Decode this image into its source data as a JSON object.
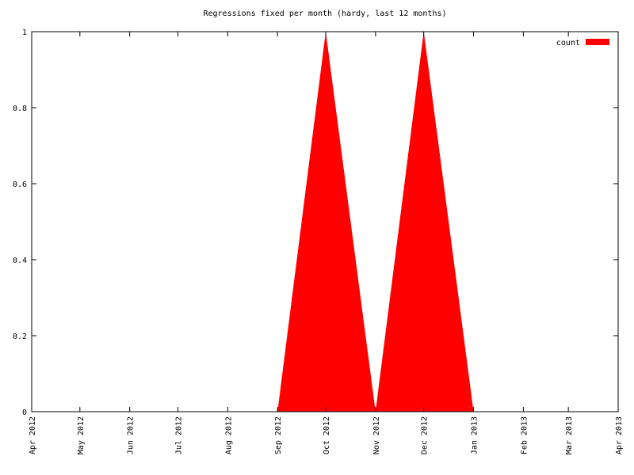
{
  "chart_data": {
    "type": "area",
    "title": "Regressions fixed per month (hardy, last 12 months)",
    "x": [
      "Sep 2012",
      "Oct 2012",
      "Nov 2012",
      "Dec 2012",
      "Jan 2013"
    ],
    "series": [
      {
        "name": "count",
        "color": "#ff0000",
        "values": [
          0,
          1,
          0,
          1,
          0
        ]
      }
    ],
    "xlim": [
      "Apr 2012",
      "Apr 2013"
    ],
    "xticks": [
      "Apr 2012",
      "May 2012",
      "Jun 2012",
      "Jul 2012",
      "Aug 2012",
      "Sep 2012",
      "Oct 2012",
      "Nov 2012",
      "Dec 2012",
      "Jan 2013",
      "Feb 2013",
      "Mar 2013",
      "Apr 2013"
    ],
    "ylim": [
      0,
      1
    ],
    "yticks": [
      0,
      0.2,
      0.4,
      0.6,
      0.8,
      1
    ],
    "legend": "top-right",
    "grid": false
  }
}
